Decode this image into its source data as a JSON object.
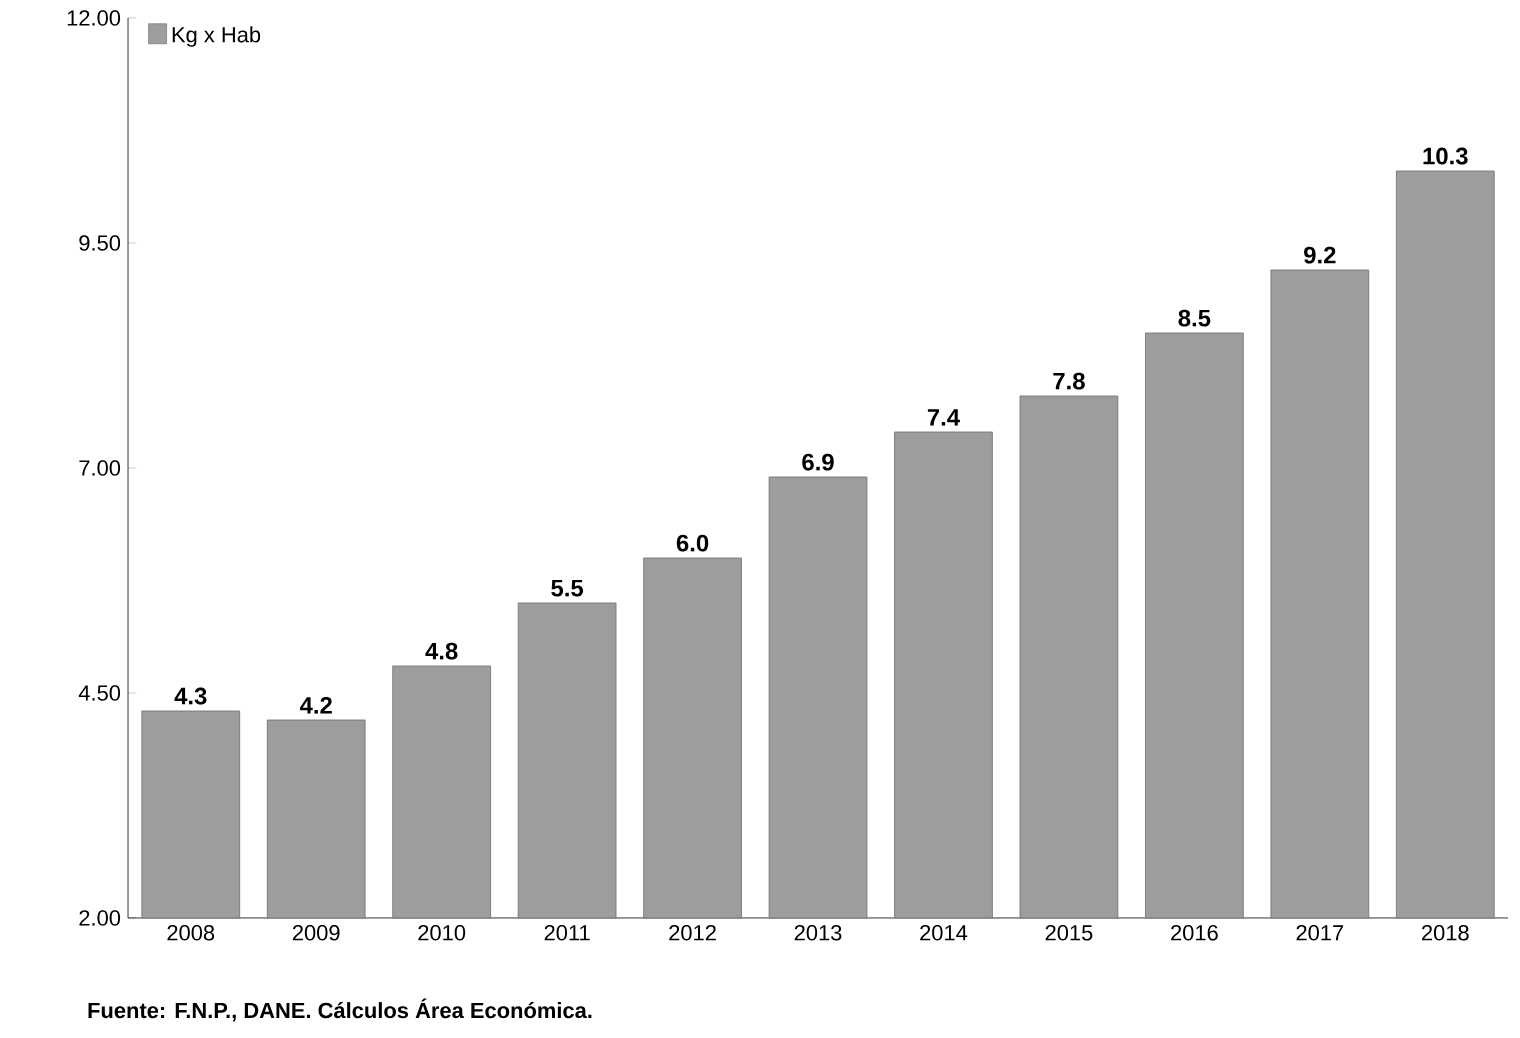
{
  "chart_data": {
    "type": "bar",
    "categories": [
      "2008",
      "2009",
      "2010",
      "2011",
      "2012",
      "2013",
      "2014",
      "2015",
      "2016",
      "2017",
      "2018"
    ],
    "series": [
      {
        "name": "Kg x Hab",
        "color": "#9d9d9d",
        "values": [
          4.3,
          4.2,
          4.8,
          5.5,
          6.0,
          6.9,
          7.4,
          7.8,
          8.5,
          9.2,
          10.3
        ],
        "value_labels": [
          "4.3",
          "4.2",
          "4.8",
          "5.5",
          "6.0",
          "6.9",
          "7.4",
          "7.8",
          "8.5",
          "9.2",
          "10.3"
        ]
      }
    ],
    "ylim": [
      2,
      12
    ],
    "yticks": [
      {
        "value": 2,
        "label": "2.00"
      },
      {
        "value": 4.5,
        "label": "4.50"
      },
      {
        "value": 7,
        "label": "7.00"
      },
      {
        "value": 9.5,
        "label": "9.50"
      },
      {
        "value": 12,
        "label": "12.00"
      }
    ],
    "legend": "top left",
    "grid": false,
    "annotations": [
      "Fuente: F.N.P., DANE. Cálculos Área Económica."
    ]
  }
}
